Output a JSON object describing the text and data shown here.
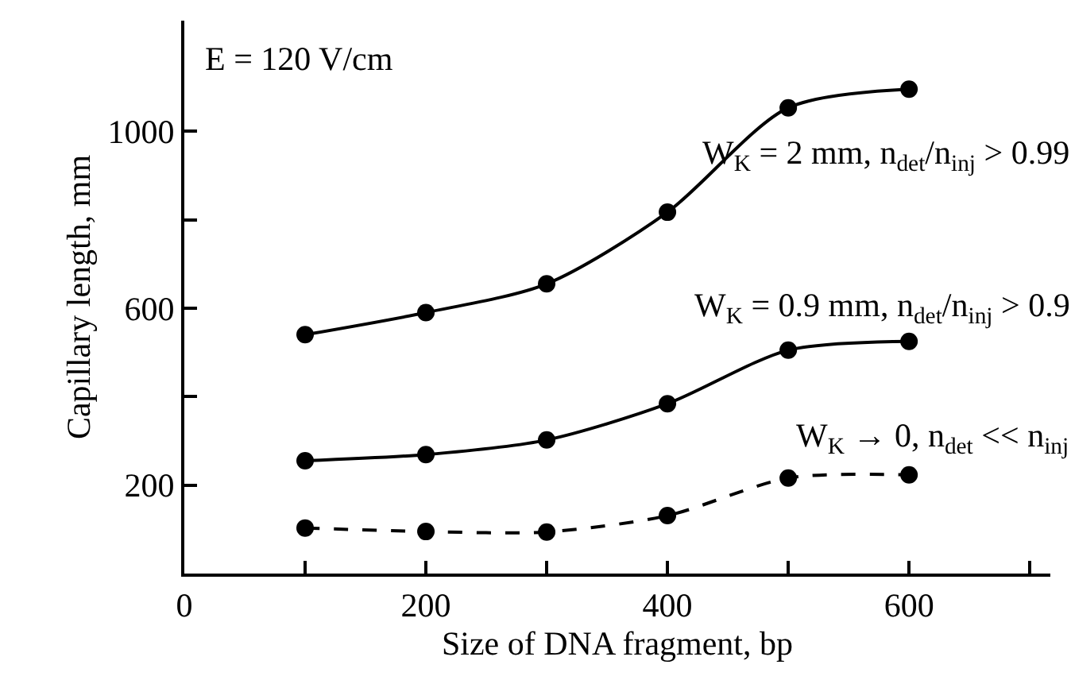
{
  "chart_data": {
    "type": "line",
    "xlabel": "Size of DNA fragment, bp",
    "ylabel": "Capillary length, mm",
    "annotations": [
      "E = 120 V/cm"
    ],
    "x": [
      100,
      200,
      300,
      400,
      500,
      600
    ],
    "series": [
      {
        "name": "W$_{K}$ = 2 mm, n$_{det}$/n$_{inj}$ > 0.99",
        "color": "#000000",
        "line_style": "solid",
        "values": [
          540,
          590,
          655,
          817,
          1053,
          1095
        ]
      },
      {
        "name": "W$_{K}$ = 0.9 mm, n$_{det}$/n$_{inj}$ > 0.9",
        "color": "#000000",
        "line_style": "solid",
        "values": [
          255,
          269,
          302,
          384,
          505,
          525
        ]
      },
      {
        "name": "W$_{K}$ → 0, n$_{det}$ << n$_{inj}$",
        "color": "#000000",
        "line_style": "dashed",
        "values": [
          103,
          95,
          94,
          131,
          216,
          223
        ]
      }
    ],
    "marker": "circle",
    "legend": false,
    "xlim": [
      0,
      717
    ],
    "ylim": [
      0,
      1250
    ],
    "xticks": [
      0,
      {
        "value": 100,
        "label": null
      },
      200,
      {
        "value": 300,
        "label": null
      },
      400,
      {
        "value": 500,
        "label": null
      },
      600,
      {
        "value": 700,
        "label": null
      }
    ],
    "yticks": [
      200,
      {
        "value": 400,
        "label": null
      },
      600,
      {
        "value": 800,
        "label": null
      },
      1000
    ]
  }
}
